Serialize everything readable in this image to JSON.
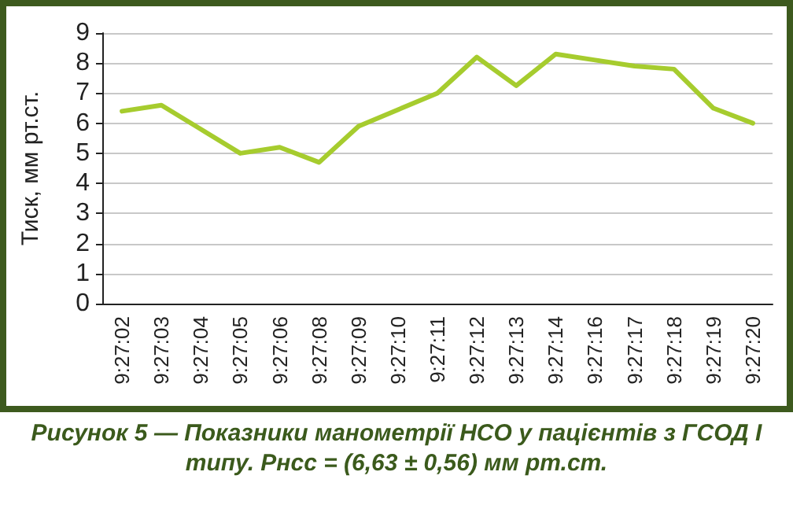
{
  "chart_data": {
    "type": "line",
    "ylabel": "Тиск, мм рт.ст.",
    "categories": [
      "9:27:02",
      "9:27:03",
      "9:27:04",
      "9:27:05",
      "9:27:06",
      "9:27:08",
      "9:27:09",
      "9:27:10",
      "9:27:11",
      "9:27:12",
      "9:27:13",
      "9:27:14",
      "9:27:16",
      "9:27:17",
      "9:27:18",
      "9:27:19",
      "9:27:20"
    ],
    "series": [
      {
        "color": "#a6cc2e",
        "values": [
          6.4,
          6.6,
          5.8,
          5.0,
          5.2,
          4.7,
          5.9,
          6.45,
          7.0,
          8.2,
          7.25,
          8.3,
          8.1,
          7.9,
          7.8,
          6.5,
          6.0
        ]
      }
    ],
    "ylim": [
      0,
      9
    ],
    "yticks": [
      0,
      1,
      2,
      3,
      4,
      5,
      6,
      7,
      8,
      9
    ],
    "grid": "y",
    "marker": "none",
    "annotations": [
      "Рисунок 5 — Показники манометрії НСО у пацієнтів з ГСОД І типу. Рнсс = (6,63 ± 0,56) мм рт.ст."
    ]
  }
}
